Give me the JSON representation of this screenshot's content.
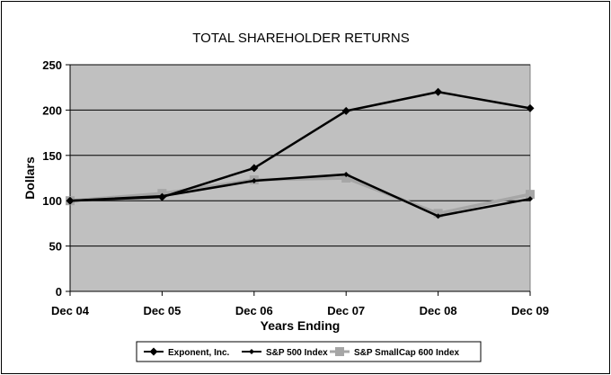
{
  "chart_data": {
    "type": "line",
    "title": "TOTAL SHAREHOLDER RETURNS",
    "xlabel": "Years Ending",
    "ylabel": "Dollars",
    "categories": [
      "Dec 04",
      "Dec 05",
      "Dec 06",
      "Dec 07",
      "Dec 08",
      "Dec 09"
    ],
    "ylim": [
      0,
      250
    ],
    "yticks": [
      0,
      50,
      100,
      150,
      200,
      250
    ],
    "grid": true,
    "legend_position": "bottom",
    "series": [
      {
        "name": "Exponent, Inc.",
        "values": [
          100,
          104,
          136,
          199,
          220,
          202
        ],
        "color": "#000000",
        "marker": "diamond"
      },
      {
        "name": "S&P 500 Index",
        "values": [
          100,
          105,
          122,
          129,
          83,
          102
        ],
        "color": "#000000",
        "marker": "diamond-small"
      },
      {
        "name": "S&P SmallCap 600 Index",
        "values": [
          100,
          108,
          123,
          125,
          86,
          107
        ],
        "color": "#a6a6a6",
        "marker": "square"
      }
    ]
  }
}
